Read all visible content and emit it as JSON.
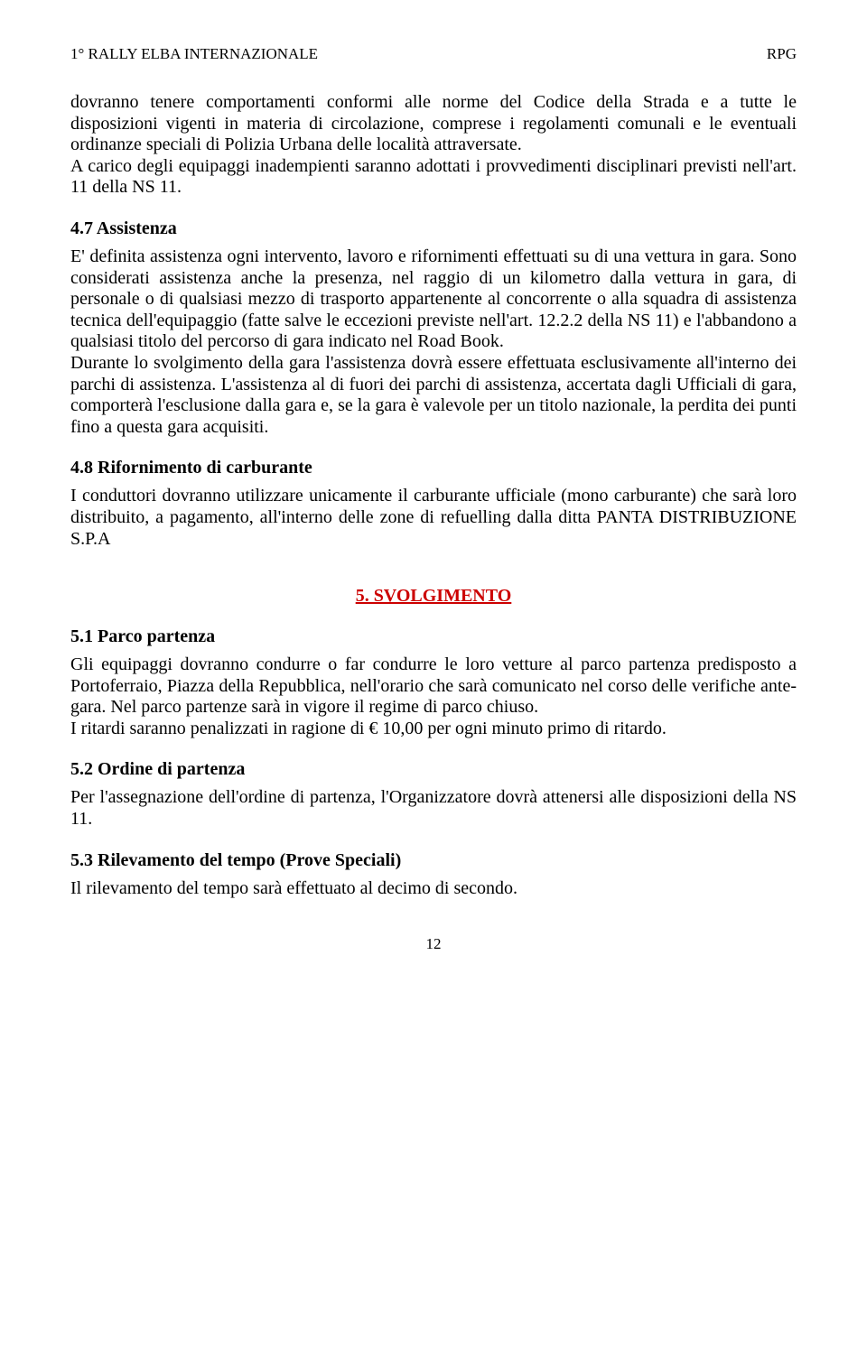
{
  "header": {
    "left": "1° RALLY ELBA INTERNAZIONALE",
    "right": "RPG"
  },
  "para_intro": "dovranno tenere comportamenti conformi alle norme del Codice della Strada e a tutte le disposizioni vigenti in materia di circolazione, comprese i regolamenti comunali e le eventuali ordinanze speciali di Polizia Urbana delle località attraversate.",
  "para_intro2": "A carico degli equipaggi inadempienti saranno adottati i provvedimenti disciplinari previsti nell'art. 11 della NS 11.",
  "s47": {
    "title": "4.7 Assistenza",
    "p1": "E' definita assistenza ogni intervento, lavoro e rifornimenti effettuati su di una vettura in gara. Sono considerati assistenza anche la presenza, nel raggio di un kilometro dalla vettura in gara, di personale o di qualsiasi mezzo di trasporto appartenente al concorrente o alla squadra di assistenza tecnica dell'equipaggio (fatte salve le eccezioni previste nell'art. 12.2.2 della NS 11) e l'abbandono a qualsiasi titolo del percorso di gara indicato nel Road Book.",
    "p2": "Durante lo svolgimento della gara l'assistenza dovrà essere effettuata esclusivamente all'interno dei parchi di assistenza. L'assistenza al di fuori dei parchi di assistenza, accertata dagli Ufficiali di gara, comporterà l'esclusione dalla gara e, se la gara è valevole per un titolo nazionale, la perdita dei punti fino a questa gara acquisiti."
  },
  "s48": {
    "title": "4.8 Rifornimento di carburante",
    "p1": "I conduttori dovranno utilizzare unicamente il carburante ufficiale (mono carburante) che sarà loro distribuito, a pagamento, all'interno delle zone di refuelling dalla ditta PANTA DISTRIBUZIONE S.P.A"
  },
  "s5": {
    "title": "5. SVOLGIMENTO"
  },
  "s51": {
    "title": "5.1 Parco partenza",
    "p1": "Gli equipaggi dovranno condurre o far condurre le loro vetture al parco partenza predisposto a Portoferraio, Piazza della Repubblica, nell'orario che sarà comunicato nel corso delle verifiche ante-gara. Nel parco partenze sarà in vigore il regime di parco chiuso.",
    "p2": "I ritardi saranno penalizzati in ragione di € 10,00 per ogni minuto primo di ritardo."
  },
  "s52": {
    "title": "5.2 Ordine di partenza",
    "p1": "Per l'assegnazione dell'ordine di partenza, l'Organizzatore dovrà attenersi alle disposizioni della NS 11."
  },
  "s53": {
    "title": "5.3 Rilevamento del tempo (Prove Speciali)",
    "p1": "Il rilevamento del tempo sarà effettuato al decimo di secondo."
  },
  "page_number": "12",
  "colors": {
    "heading_red": "#cc0000",
    "text": "#000000",
    "background": "#ffffff"
  }
}
